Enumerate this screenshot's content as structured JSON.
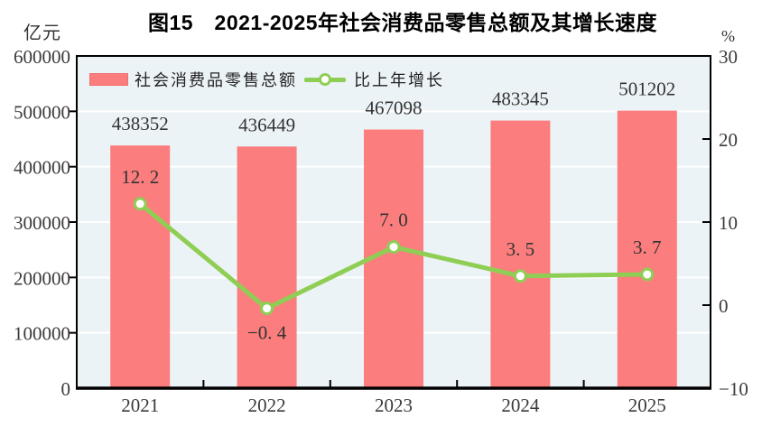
{
  "title": "图15　2021-2025年社会消费品零售总额及其增长速度",
  "left_axis_unit": "亿元",
  "right_axis_unit": "%",
  "legend": {
    "bars": "社会消费品零售总额",
    "line": "比上年增长"
  },
  "colors": {
    "bar": "#fb7d7d",
    "bar_border": "#ef716f",
    "line": "#8fce54",
    "marker_fill": "#ffffff",
    "plot_bg": "#ecf3f7",
    "grid": "#ffffff",
    "axis": "#000000",
    "label": "#333333"
  },
  "chart_data": {
    "type": "bar",
    "categories": [
      "2021",
      "2022",
      "2023",
      "2024",
      "2025"
    ],
    "series": [
      {
        "name": "社会消费品零售总额",
        "type": "bar",
        "axis": "left",
        "values": [
          438352,
          436449,
          467098,
          483345,
          501202
        ],
        "display": [
          "438352",
          "436449",
          "467098",
          "483345",
          "501202"
        ]
      },
      {
        "name": "比上年增长",
        "type": "line",
        "axis": "right",
        "values": [
          12.2,
          -0.4,
          7.0,
          3.5,
          3.7
        ],
        "display": [
          "12. 2",
          "−0. 4",
          "7. 0",
          "3. 5",
          "3. 7"
        ],
        "label_positions": [
          "above",
          "below",
          "above",
          "above",
          "above"
        ]
      }
    ],
    "title": "图15　2021-2025年社会消费品零售总额及其增长速度",
    "xlabel": "",
    "ylabel_left": "亿元",
    "ylabel_right": "%",
    "left_axis": {
      "min": 0,
      "max": 600000,
      "ticks": [
        0,
        100000,
        200000,
        300000,
        400000,
        500000,
        600000
      ]
    },
    "right_axis": {
      "min": -10,
      "max": 30,
      "ticks": [
        -10,
        0,
        10,
        20,
        30
      ]
    },
    "grid": true,
    "legend_position": "top-left"
  }
}
